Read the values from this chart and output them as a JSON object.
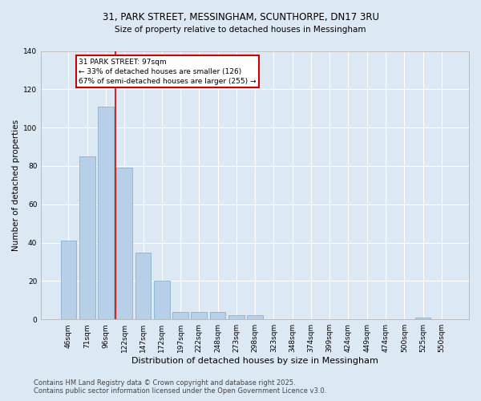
{
  "title1": "31, PARK STREET, MESSINGHAM, SCUNTHORPE, DN17 3RU",
  "title2": "Size of property relative to detached houses in Messingham",
  "xlabel": "Distribution of detached houses by size in Messingham",
  "ylabel": "Number of detached properties",
  "categories": [
    "46sqm",
    "71sqm",
    "96sqm",
    "122sqm",
    "147sqm",
    "172sqm",
    "197sqm",
    "222sqm",
    "248sqm",
    "273sqm",
    "298sqm",
    "323sqm",
    "348sqm",
    "374sqm",
    "399sqm",
    "424sqm",
    "449sqm",
    "474sqm",
    "500sqm",
    "525sqm",
    "550sqm"
  ],
  "values": [
    41,
    85,
    111,
    79,
    35,
    20,
    4,
    4,
    4,
    2,
    2,
    0,
    0,
    0,
    0,
    0,
    0,
    0,
    0,
    1,
    0
  ],
  "bar_color": "#b8cfe8",
  "bar_edge_color": "#8ab0d0",
  "annotation_text_line1": "31 PARK STREET: 97sqm",
  "annotation_text_line2": "← 33% of detached houses are smaller (126)",
  "annotation_text_line3": "67% of semi-detached houses are larger (255) →",
  "annotation_box_color": "#cc0000",
  "vline_color": "#cc0000",
  "ylim": [
    0,
    140
  ],
  "yticks": [
    0,
    20,
    40,
    60,
    80,
    100,
    120,
    140
  ],
  "footer1": "Contains HM Land Registry data © Crown copyright and database right 2025.",
  "footer2": "Contains public sector information licensed under the Open Government Licence v3.0.",
  "bg_color": "#dde8f5",
  "plot_bg_color": "#dde8f5"
}
